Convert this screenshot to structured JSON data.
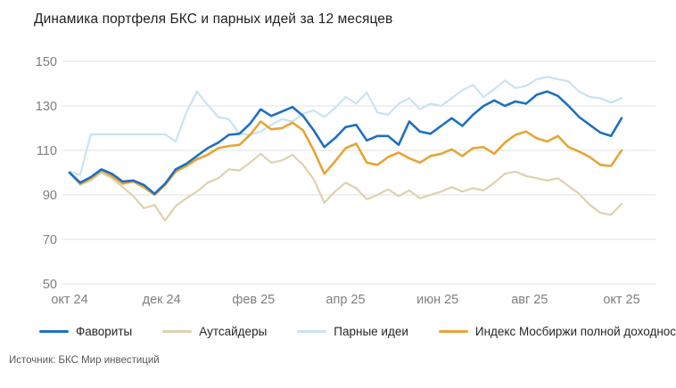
{
  "title": "Динамика портфеля БКС и парных идей за 12 месяцев",
  "source": "Источник: БКС Мир инвестиций",
  "colors": {
    "background": "#ffffff",
    "gridline": "#e2e2e2",
    "axis_label": "#7f7f7f",
    "title_text": "#1f1f1f",
    "legend_text": "#262626",
    "source_text": "#595959"
  },
  "chart_data": {
    "type": "line",
    "title": "Динамика портфеля БКС и парных идей за 12 месяцев",
    "xlabel": "",
    "ylabel": "",
    "ylim": [
      50,
      150
    ],
    "y_ticks": [
      150,
      130,
      110,
      90,
      70,
      50
    ],
    "x_tick_labels": [
      "окт 24",
      "дек 24",
      "фев 25",
      "апр 25",
      "июн 25",
      "авг 25",
      "окт 25"
    ],
    "x_sampling": "weekly estimates, Oct 2024 - Oct 2025 (53 points)",
    "grid": "horizontal",
    "legend_position": "bottom",
    "draw_order": [
      2,
      1,
      3,
      0
    ],
    "series": [
      {
        "name": "Фавориты",
        "color": "#1f70c1",
        "width": 2.6,
        "values": [
          100,
          95.5,
          98,
          101.5,
          99.5,
          96,
          96.5,
          94.5,
          90.5,
          95,
          101.5,
          104,
          107.5,
          111,
          113.5,
          117,
          117.5,
          122,
          128.5,
          125.5,
          127.5,
          129.5,
          125.5,
          119,
          111.5,
          115.5,
          120.5,
          121.5,
          114.5,
          116.5,
          116.5,
          112.5,
          123,
          118.5,
          117.5,
          121,
          124.5,
          121,
          126,
          130,
          132.5,
          130,
          132,
          131,
          135,
          136.5,
          134.5,
          130,
          125,
          121.5,
          118,
          116.5,
          124.5
        ]
      },
      {
        "name": "Аутсайдеры",
        "color": "#ddd2ae",
        "width": 2.2,
        "values": [
          100,
          94.5,
          96.5,
          100,
          97.5,
          93.5,
          89.5,
          84,
          85.5,
          78.5,
          85,
          88.5,
          91.5,
          95.5,
          97.5,
          101.5,
          101,
          104.5,
          108.5,
          104.5,
          105.5,
          108,
          103.5,
          97,
          86.5,
          91.5,
          95.5,
          93,
          88,
          90,
          92.5,
          89.5,
          92,
          88.5,
          90,
          91.5,
          93.5,
          91.5,
          93,
          92,
          95.5,
          99.5,
          100.5,
          98.5,
          97.5,
          96.5,
          97.5,
          94,
          90.5,
          85.5,
          82,
          81,
          86
        ]
      },
      {
        "name": "Парные идеи",
        "color": "#c9e3f1",
        "width": 2.2,
        "values": [
          100.5,
          99,
          117.2,
          117.2,
          117.2,
          117.2,
          117.2,
          117.2,
          117.2,
          117.2,
          114,
          127,
          136.5,
          130.5,
          125,
          124,
          117.5,
          117,
          118.5,
          121.5,
          124,
          123,
          126.5,
          128,
          125,
          129,
          134,
          131,
          136,
          127,
          126,
          131,
          133.5,
          128.5,
          131,
          130,
          133.5,
          137,
          139.5,
          134,
          137.5,
          141.5,
          138,
          139,
          142,
          143,
          142,
          141,
          136.5,
          134,
          133.5,
          131.5,
          133.5
        ]
      },
      {
        "name": "Индекс Мосбиржи полной доходности",
        "color": "#e7a435",
        "width": 2.6,
        "values": [
          100,
          95,
          97.5,
          101,
          98.5,
          95,
          96,
          93.5,
          90,
          94.5,
          100.5,
          103,
          106,
          108,
          111,
          112,
          112.5,
          117,
          123,
          119.5,
          120,
          122.5,
          119,
          110,
          99.5,
          105,
          111,
          113,
          104.5,
          103.5,
          107,
          109,
          106.5,
          104.5,
          107.5,
          108.5,
          110.5,
          107.5,
          111,
          111.5,
          108.5,
          113.5,
          117,
          118.5,
          115.5,
          114,
          116.5,
          111.5,
          109.5,
          107,
          103.5,
          103,
          110
        ]
      }
    ]
  }
}
